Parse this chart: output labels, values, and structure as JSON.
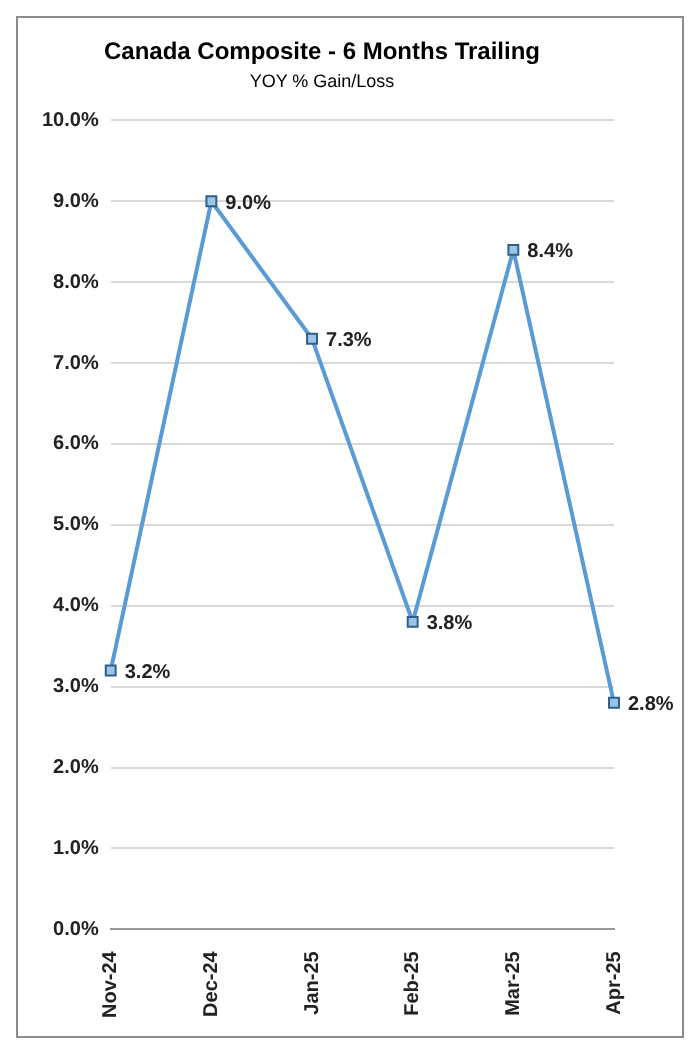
{
  "chart_data": {
    "type": "line",
    "title": "Canada Composite - 6 Months Trailing",
    "subtitle": "YOY % Gain/Loss",
    "categories": [
      "Nov-24",
      "Dec-24",
      "Jan-25",
      "Feb-25",
      "Mar-25",
      "Apr-25"
    ],
    "series": [
      {
        "color": "#5b9bd5",
        "values": [
          3.2,
          9.0,
          7.3,
          3.8,
          8.4,
          2.8
        ],
        "value_labels": [
          "3.2%",
          "9.0%",
          "7.3%",
          "3.8%",
          "8.4%",
          "2.8%"
        ]
      }
    ],
    "ylim": [
      0,
      10
    ],
    "yticks": [
      {
        "value": 0,
        "label": "0.0%"
      },
      {
        "value": 1,
        "label": "1.0%"
      },
      {
        "value": 2,
        "label": "2.0%"
      },
      {
        "value": 3,
        "label": "3.0%"
      },
      {
        "value": 4,
        "label": "4.0%"
      },
      {
        "value": 5,
        "label": "5.0%"
      },
      {
        "value": 6,
        "label": "6.0%"
      },
      {
        "value": 7,
        "label": "7.0%"
      },
      {
        "value": 8,
        "label": "8.0%"
      },
      {
        "value": 9,
        "label": "9.0%"
      },
      {
        "value": 10,
        "label": "10.0%"
      }
    ],
    "grid": "y",
    "legend": false,
    "marker": "square",
    "line_style": "solid"
  }
}
